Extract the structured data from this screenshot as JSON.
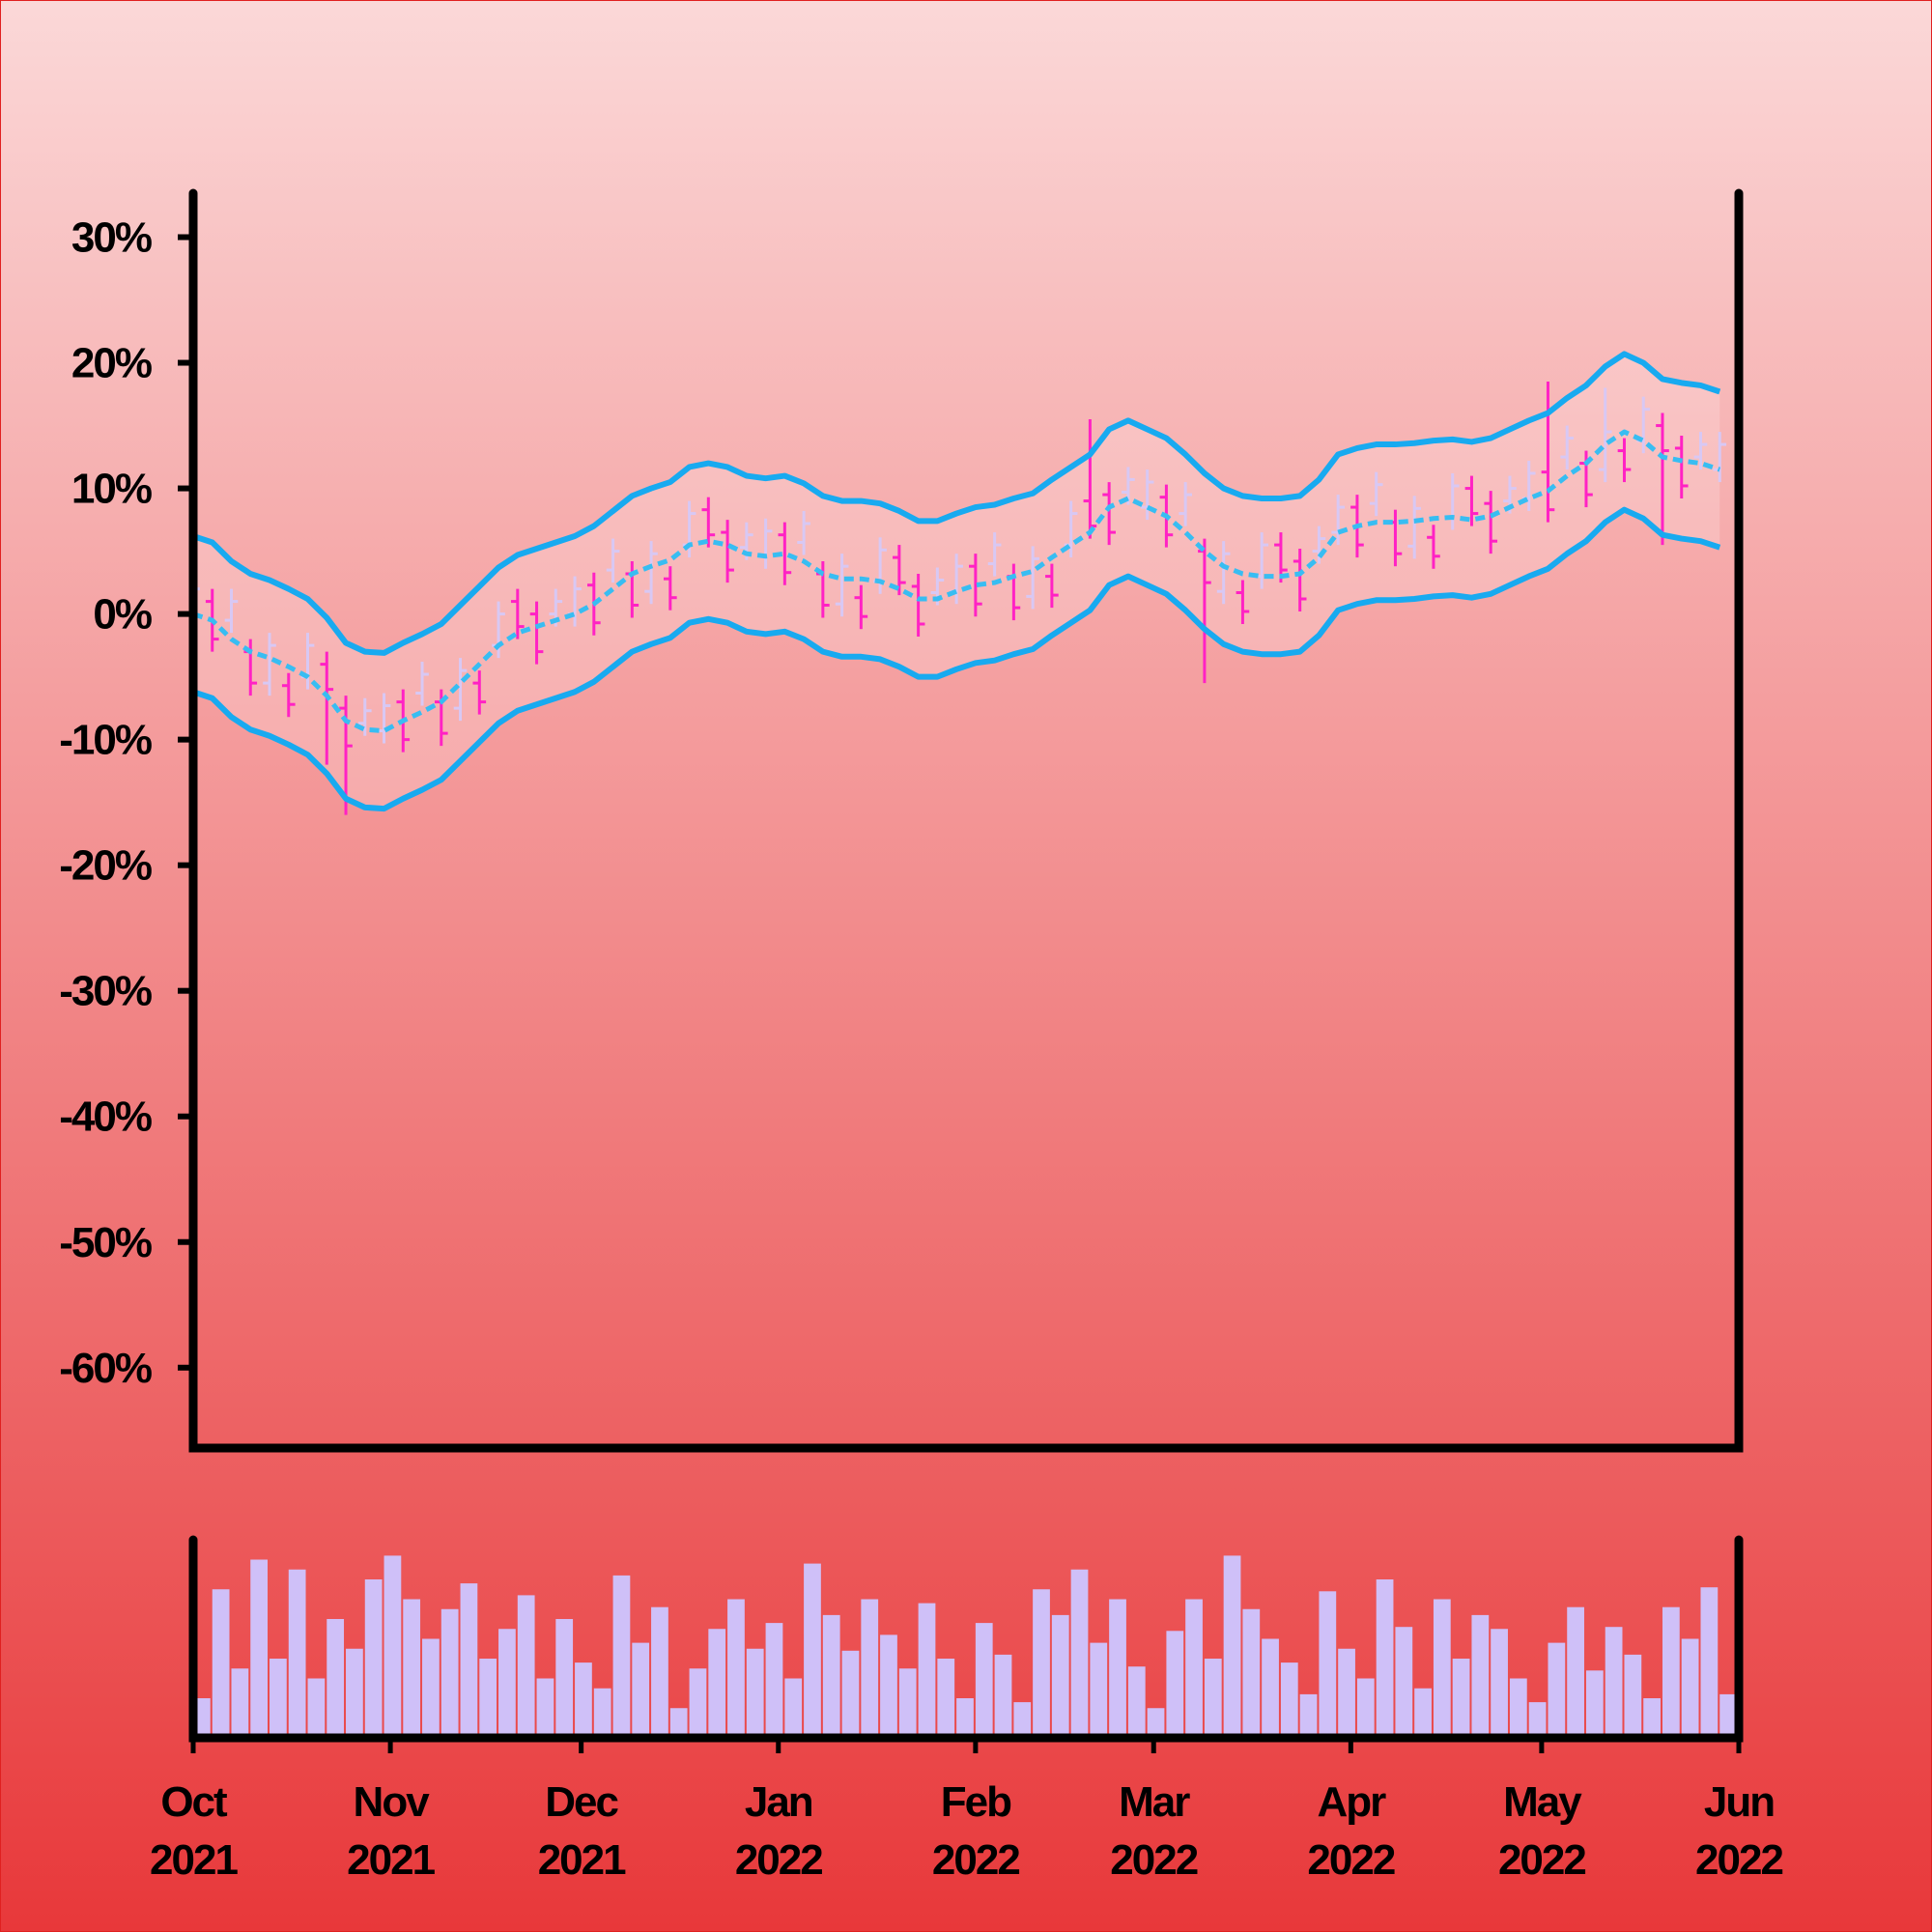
{
  "chart_data": {
    "type": "ohlc",
    "x": [
      "2021-10-01",
      "2021-10-04",
      "2021-10-07",
      "2021-10-10",
      "2021-10-13",
      "2021-10-16",
      "2021-10-19",
      "2021-10-22",
      "2021-10-25",
      "2021-10-28",
      "2021-10-31",
      "2021-11-03",
      "2021-11-06",
      "2021-11-09",
      "2021-11-12",
      "2021-11-15",
      "2021-11-18",
      "2021-11-21",
      "2021-11-24",
      "2021-11-27",
      "2021-11-30",
      "2021-12-03",
      "2021-12-06",
      "2021-12-09",
      "2021-12-12",
      "2021-12-15",
      "2021-12-18",
      "2021-12-21",
      "2021-12-24",
      "2021-12-27",
      "2021-12-30",
      "2022-01-02",
      "2022-01-05",
      "2022-01-08",
      "2022-01-11",
      "2022-01-14",
      "2022-01-17",
      "2022-01-20",
      "2022-01-23",
      "2022-01-26",
      "2022-01-29",
      "2022-02-01",
      "2022-02-04",
      "2022-02-07",
      "2022-02-10",
      "2022-02-13",
      "2022-02-16",
      "2022-02-19",
      "2022-02-22",
      "2022-02-25",
      "2022-02-28",
      "2022-03-03",
      "2022-03-06",
      "2022-03-09",
      "2022-03-12",
      "2022-03-15",
      "2022-03-18",
      "2022-03-21",
      "2022-03-24",
      "2022-03-27",
      "2022-03-30",
      "2022-04-02",
      "2022-04-05",
      "2022-04-08",
      "2022-04-11",
      "2022-04-14",
      "2022-04-17",
      "2022-04-20",
      "2022-04-23",
      "2022-04-26",
      "2022-04-29",
      "2022-05-02",
      "2022-05-05",
      "2022-05-08",
      "2022-05-11",
      "2022-05-14",
      "2022-05-17",
      "2022-05-20",
      "2022-05-23",
      "2022-05-26",
      "2022-05-29"
    ],
    "open": [
      0,
      1,
      -0.5,
      -3,
      -5.5,
      -5.7,
      -5,
      -4,
      -7.5,
      -8.7,
      -9.3,
      -7,
      -6.3,
      -7,
      -7.5,
      -5.5,
      -2.5,
      1,
      0,
      0,
      0,
      2.3,
      3.5,
      3.2,
      1.8,
      2.8,
      5.5,
      8.3,
      6.5,
      5.3,
      4.6,
      6.3,
      5.7,
      3.2,
      0.8,
      1.3,
      2.6,
      4.5,
      2.2,
      1.7,
      1.8,
      3.8,
      4,
      3,
      1.4,
      3,
      5.5,
      9,
      9.5,
      9.7,
      8.5,
      9.3,
      8,
      5,
      1.8,
      1.7,
      3,
      5.5,
      4.2,
      5,
      6.5,
      8.5,
      8.8,
      7.3,
      5.4,
      6.1,
      7.7,
      10,
      8.8,
      9,
      9.2,
      11.3,
      12.5,
      12,
      11.5,
      13,
      13.8,
      15,
      13.2,
      12.5,
      11.5
    ],
    "high": [
      3,
      2,
      2,
      -2,
      -1.5,
      -4.7,
      -1.5,
      -3,
      -6.5,
      -6.7,
      -6.3,
      -6,
      -3.8,
      -6,
      -3.5,
      -4.5,
      1,
      2,
      1,
      2,
      3,
      3.3,
      6,
      4.2,
      5.8,
      3.8,
      9,
      9.3,
      7.5,
      7.3,
      7.6,
      7.3,
      8.2,
      4.2,
      4.8,
      2.3,
      6.1,
      5.5,
      3.2,
      3.7,
      4.8,
      4.8,
      6.5,
      4,
      5.4,
      4,
      9,
      15.5,
      10.5,
      11.7,
      11.5,
      10.3,
      10.5,
      6,
      5.8,
      2.7,
      6.5,
      6.5,
      5.2,
      7,
      9.5,
      9.5,
      11.3,
      8.3,
      9.4,
      7.1,
      11.2,
      11,
      9.8,
      11,
      12.2,
      18.5,
      15,
      13,
      18,
      14,
      17.3,
      16,
      14.2,
      14.5,
      14.5
    ],
    "low": [
      -1,
      -3,
      -1.5,
      -6.5,
      -6.5,
      -8.2,
      -6,
      -12,
      -16,
      -9.7,
      -10.3,
      -11,
      -7.3,
      -10.5,
      -8.5,
      -8,
      -3.5,
      -2,
      -4,
      -1,
      -1,
      -1.7,
      2.5,
      -0.3,
      0.8,
      0.3,
      4.5,
      5.3,
      2.5,
      4.3,
      3.6,
      2.3,
      4.7,
      -0.3,
      -0.2,
      -1.2,
      1.6,
      1.5,
      -1.8,
      0.7,
      0.8,
      -0.2,
      3,
      -0.5,
      0.4,
      0.5,
      4.5,
      6,
      5.5,
      8.7,
      7.5,
      5.3,
      7,
      -5.5,
      0.8,
      -0.8,
      2,
      2.5,
      0.2,
      4,
      5.5,
      4.5,
      7.8,
      3.8,
      4.4,
      3.6,
      6.7,
      7,
      4.8,
      8,
      8.2,
      7.3,
      11.5,
      8.5,
      10.5,
      10.5,
      12.8,
      5.5,
      9.2,
      11.5,
      10.5
    ],
    "close": [
      2,
      -2,
      1,
      -5.5,
      -2.5,
      -7.2,
      -2.5,
      -6,
      -10.5,
      -7.7,
      -7.3,
      -10,
      -4.8,
      -9.5,
      -4.5,
      -7,
      0,
      -1,
      -3,
      1,
      2,
      -0.7,
      5,
      0.7,
      4.8,
      1.3,
      8,
      6.3,
      3.5,
      6.3,
      6.6,
      3.3,
      7.2,
      0.7,
      3.8,
      -0.2,
      5.1,
      2.5,
      -0.8,
      2.7,
      3.8,
      0.8,
      5.5,
      0.5,
      4.4,
      1.5,
      8,
      7,
      6.5,
      10.7,
      10.5,
      6.3,
      9.5,
      2.5,
      4.8,
      0.2,
      5.5,
      3.5,
      1.2,
      6,
      8.5,
      5.5,
      10.3,
      4.8,
      8.4,
      4.6,
      10.2,
      8,
      5.8,
      10,
      11.2,
      8.3,
      14,
      9.5,
      14.5,
      11.5,
      16.3,
      13,
      10.2,
      13.5,
      13.5
    ],
    "up_color": "#d8c8f4",
    "down_color": "#ff22c4",
    "series": [
      {
        "color": "#18aaf0",
        "values": [
          6.2,
          5.7,
          4.2,
          3.2,
          2.7,
          2,
          1.2,
          -0.3,
          -2.3,
          -3,
          -3.1,
          -2.3,
          -1.6,
          -0.8,
          0.7,
          2.2,
          3.7,
          4.7,
          5.2,
          5.7,
          6.2,
          7,
          8.2,
          9.4,
          10,
          10.5,
          11.7,
          12,
          11.7,
          11,
          10.8,
          11,
          10.4,
          9.4,
          9,
          9,
          8.8,
          8.2,
          7.4,
          7.4,
          8,
          8.5,
          8.7,
          9.2,
          9.6,
          10.7,
          11.7,
          12.7,
          14.7,
          15.4,
          14.7,
          14,
          12.7,
          11.2,
          10,
          9.4,
          9.2,
          9.2,
          9.4,
          10.7,
          12.7,
          13.2,
          13.5,
          13.5,
          13.6,
          13.8,
          13.9,
          13.7,
          14,
          14.7,
          15.4,
          16,
          17.2,
          18.2,
          19.7,
          20.7,
          20,
          18.7,
          18.4,
          18.2,
          17.7
        ]
      },
      {
        "color": "#38bdf2",
        "dashed": true,
        "values": [
          0,
          -0.5,
          -2,
          -3,
          -3.5,
          -4.2,
          -5,
          -6.5,
          -8.5,
          -9.2,
          -9.3,
          -8.5,
          -7.8,
          -7,
          -5.5,
          -4,
          -2.5,
          -1.5,
          -1,
          -0.5,
          0,
          0.8,
          2,
          3.2,
          3.8,
          4.3,
          5.5,
          5.8,
          5.5,
          4.8,
          4.6,
          4.8,
          4.2,
          3.2,
          2.8,
          2.8,
          2.6,
          2,
          1.2,
          1.2,
          1.8,
          2.3,
          2.5,
          3,
          3.4,
          4.5,
          5.5,
          6.5,
          8.5,
          9.2,
          8.5,
          7.8,
          6.5,
          5,
          3.8,
          3.2,
          3,
          3,
          3.2,
          4.5,
          6.5,
          7,
          7.3,
          7.3,
          7.4,
          7.6,
          7.7,
          7.5,
          7.8,
          8.5,
          9.2,
          9.8,
          11,
          12,
          13.5,
          14.5,
          13.8,
          12.5,
          12.2,
          12,
          11.5
        ]
      },
      {
        "color": "#18aaf0",
        "values": [
          -6.2,
          -6.7,
          -8.2,
          -9.2,
          -9.7,
          -10.4,
          -11.2,
          -12.7,
          -14.7,
          -15.4,
          -15.5,
          -14.7,
          -14,
          -13.2,
          -11.7,
          -10.2,
          -8.7,
          -7.7,
          -7.2,
          -6.7,
          -6.2,
          -5.4,
          -4.2,
          -3,
          -2.4,
          -1.9,
          -0.7,
          -0.4,
          -0.7,
          -1.4,
          -1.6,
          -1.4,
          -2,
          -3,
          -3.4,
          -3.4,
          -3.6,
          -4.2,
          -5,
          -5,
          -4.4,
          -3.9,
          -3.7,
          -3.2,
          -2.8,
          -1.7,
          -0.7,
          0.3,
          2.3,
          3,
          2.3,
          1.6,
          0.3,
          -1.2,
          -2.4,
          -3,
          -3.2,
          -3.2,
          -3,
          -1.7,
          0.3,
          0.8,
          1.1,
          1.1,
          1.2,
          1.4,
          1.5,
          1.3,
          1.6,
          2.3,
          3,
          3.6,
          4.8,
          5.8,
          7.3,
          8.3,
          7.6,
          6.3,
          6,
          5.8,
          5.3
        ]
      }
    ],
    "volume": [
      20,
      75,
      35,
      90,
      40,
      85,
      30,
      60,
      45,
      80,
      92,
      70,
      50,
      65,
      78,
      40,
      55,
      72,
      30,
      60,
      38,
      25,
      82,
      48,
      66,
      15,
      35,
      55,
      70,
      45,
      58,
      30,
      88,
      62,
      44,
      70,
      52,
      35,
      68,
      40,
      20,
      58,
      42,
      18,
      75,
      62,
      85,
      48,
      70,
      36,
      15,
      54,
      70,
      40,
      92,
      65,
      50,
      38,
      22,
      74,
      45,
      30,
      80,
      56,
      25,
      70,
      40,
      62,
      55,
      30,
      18,
      48,
      66,
      34,
      56,
      42,
      20,
      66,
      50,
      76,
      22
    ],
    "volume_color": "#cfc0f8",
    "volume_ylim": [
      0,
      100
    ],
    "ylim": [
      -66.4,
      33.5
    ],
    "yticks": [
      {
        "value": 30,
        "label": "30%"
      },
      {
        "value": 20,
        "label": "20%"
      },
      {
        "value": 10,
        "label": "10%"
      },
      {
        "value": 0,
        "label": "0%"
      },
      {
        "value": -10,
        "label": "-10%"
      },
      {
        "value": -20,
        "label": "-20%"
      },
      {
        "value": -30,
        "label": "-30%"
      },
      {
        "value": -40,
        "label": "-40%"
      },
      {
        "value": -50,
        "label": "-50%"
      },
      {
        "value": -60,
        "label": "-60%"
      }
    ],
    "xlim": [
      "2021-10-01",
      "2022-06-01"
    ],
    "xticks": [
      {
        "value": "2021-10-01",
        "label": "Oct 2021"
      },
      {
        "value": "2021-11-01",
        "label": "Nov 2021"
      },
      {
        "value": "2021-12-01",
        "label": "Dec 2021"
      },
      {
        "value": "2022-01-01",
        "label": "Jan 2022"
      },
      {
        "value": "2022-02-01",
        "label": "Feb 2022"
      },
      {
        "value": "2022-03-01",
        "label": "Mar 2022"
      },
      {
        "value": "2022-04-01",
        "label": "Apr 2022"
      },
      {
        "value": "2022-05-01",
        "label": "May 2022"
      },
      {
        "value": "2022-06-01",
        "label": "Jun 2022"
      }
    ]
  }
}
